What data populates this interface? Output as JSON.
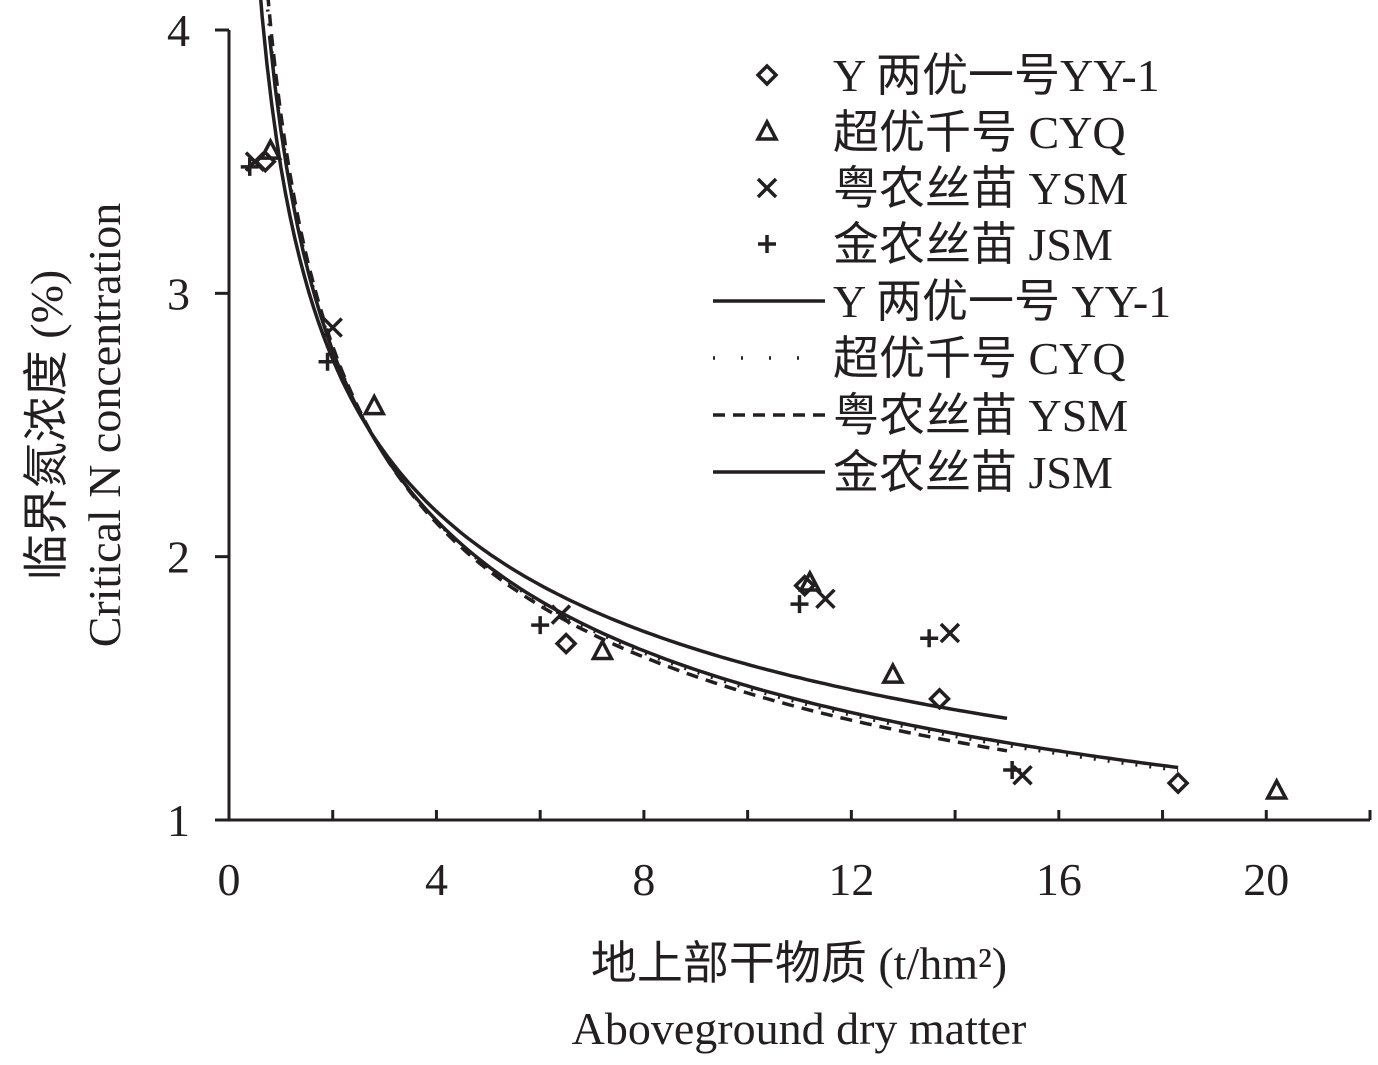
{
  "chart_data": {
    "type": "scatter",
    "xlabel_cn": "地上部干物质 (t/hm²)",
    "xlabel_en": "Aboveground dry matter",
    "ylabel_cn": "临界氮浓度 (%)",
    "ylabel_en": "Critical N concentration",
    "xlim": [
      0,
      22
    ],
    "ylim": [
      1,
      4
    ],
    "xticks": [
      "0",
      "4",
      "8",
      "12",
      "16",
      "20"
    ],
    "yticks": [
      "1",
      "2",
      "3",
      "4"
    ],
    "grid": false,
    "legend_position": "top-right",
    "series": [
      {
        "name": "Y 两优一号YY-1",
        "kind": "points",
        "marker": "diamond",
        "points": [
          [
            0.7,
            3.5
          ],
          [
            6.5,
            1.67
          ],
          [
            13.7,
            1.46
          ],
          [
            18.3,
            1.14
          ],
          [
            11.1,
            1.89
          ]
        ]
      },
      {
        "name": "超优千号 CYQ",
        "kind": "points",
        "marker": "triangle",
        "points": [
          [
            0.8,
            3.54
          ],
          [
            2.8,
            2.57
          ],
          [
            7.2,
            1.64
          ],
          [
            11.2,
            1.9
          ],
          [
            12.8,
            1.55
          ],
          [
            20.2,
            1.11
          ]
        ]
      },
      {
        "name": "粤农丝苗 YSM",
        "kind": "points",
        "marker": "x",
        "points": [
          [
            0.5,
            3.5
          ],
          [
            2.0,
            2.87
          ],
          [
            6.4,
            1.78
          ],
          [
            11.5,
            1.84
          ],
          [
            13.9,
            1.71
          ],
          [
            15.3,
            1.17
          ]
        ]
      },
      {
        "name": "金农丝苗 JSM",
        "kind": "points",
        "marker": "plus",
        "points": [
          [
            0.4,
            3.48
          ],
          [
            1.9,
            2.74
          ],
          [
            6.0,
            1.74
          ],
          [
            11.0,
            1.82
          ],
          [
            13.5,
            1.69
          ],
          [
            15.1,
            1.19
          ]
        ]
      },
      {
        "name": "Y 两优一号 YY-1",
        "kind": "curve",
        "dash": "solid",
        "a": 3.48,
        "b": 0.34,
        "x_range": [
          0.55,
          15.0
        ]
      },
      {
        "name": "超优千号 CYQ",
        "kind": "curve",
        "dash": "dotted",
        "a": 3.64,
        "b": 0.385,
        "x_range": [
          0.72,
          18.3
        ]
      },
      {
        "name": "粤农丝苗 YSM",
        "kind": "curve",
        "dash": "dashed",
        "a": 3.68,
        "b": 0.395,
        "x_range": [
          0.45,
          15.0
        ]
      },
      {
        "name": "金农丝苗 JSM",
        "kind": "curve",
        "dash": "solid",
        "a": 3.62,
        "b": 0.38,
        "x_range": [
          0.78,
          18.3
        ]
      }
    ]
  }
}
